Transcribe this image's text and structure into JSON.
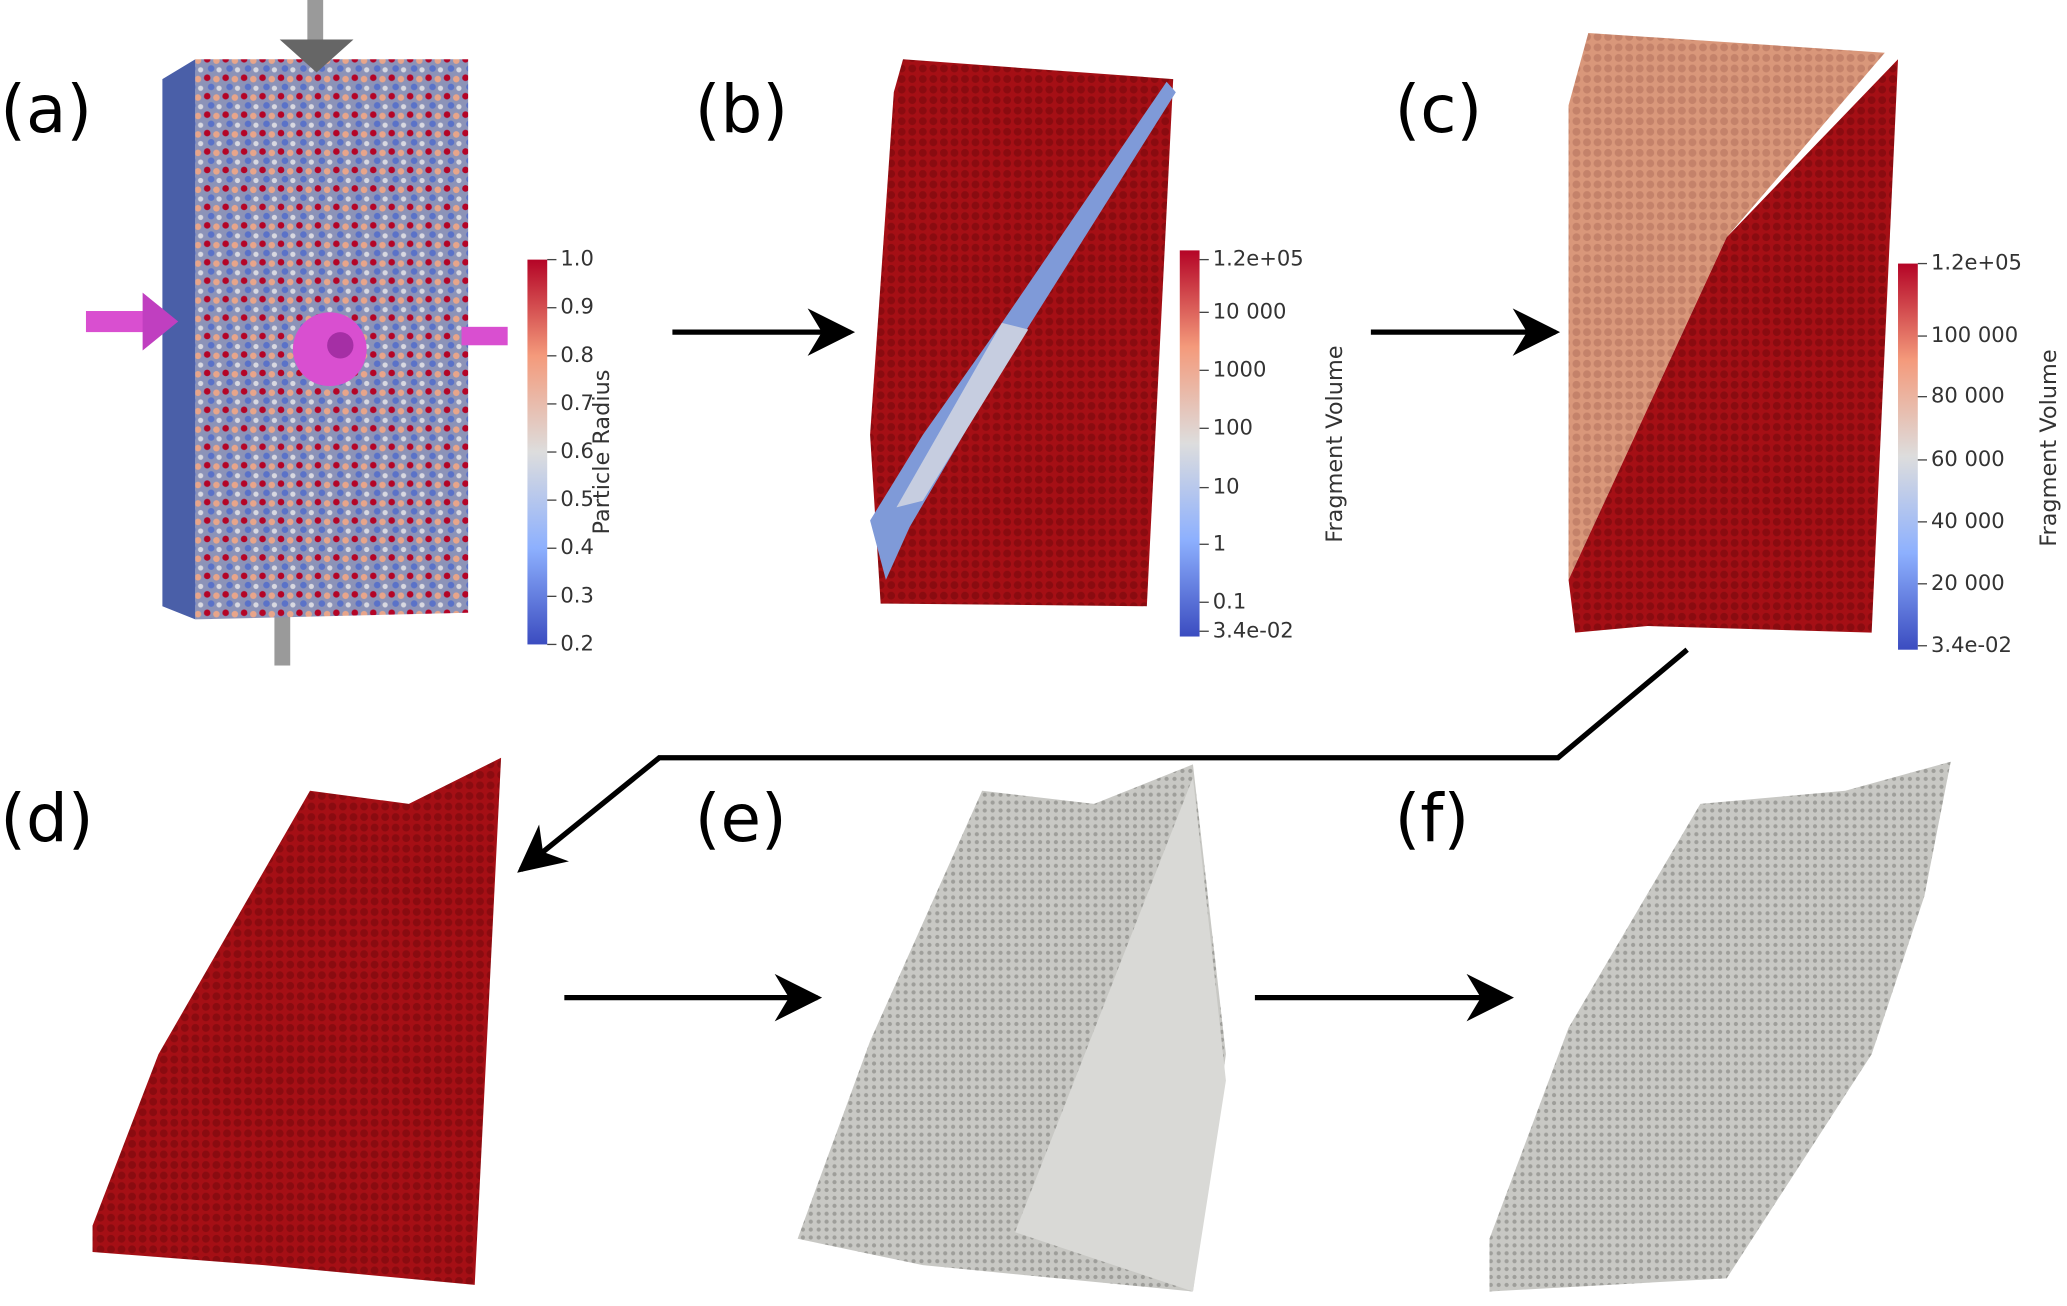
{
  "panels": [
    {
      "label": "(a)"
    },
    {
      "label": "(b)"
    },
    {
      "label": "(c)"
    },
    {
      "label": "(d)"
    },
    {
      "label": "(e)"
    },
    {
      "label": "(f)"
    }
  ],
  "colorbars": [
    {
      "title": "Particle Radius",
      "ticks": [
        "1.0",
        "0.9",
        "0.8",
        "0.7",
        "0.6",
        "0.5",
        "0.4",
        "0.3",
        "0.2"
      ]
    },
    {
      "title": "Fragment Volume",
      "ticks": [
        "1.2e+05",
        "10 000",
        "1000",
        "100",
        "10",
        "1",
        "0.1",
        "3.4e-02"
      ]
    },
    {
      "title": "Fragment Volume",
      "ticks": [
        "1.2e+05",
        "100 000",
        "80 000",
        "60 000",
        "40 000",
        "20 000",
        "3.4e-02"
      ]
    }
  ]
}
